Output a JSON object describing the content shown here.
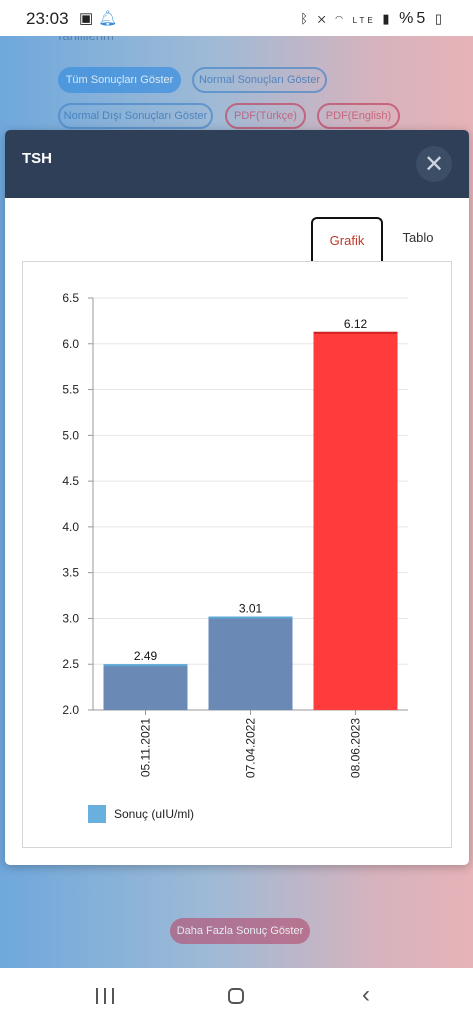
{
  "status_bar": {
    "time": "23:03",
    "left_icons": [
      "image-icon",
      "bell-icon"
    ],
    "right_icons": [
      "bluetooth-icon",
      "mute-icon",
      "wifi-icon",
      "volte-icon",
      "signal-icon"
    ],
    "battery_text": "%5"
  },
  "background": {
    "partial_text": "Tahlillerim",
    "buttons": {
      "all_results": "Tüm Sonuçları Göster",
      "normal_results": "Normal Sonuçları Göster",
      "abnormal_results": "Normal Dışı Sonuçları Göster",
      "pdf_tr": "PDF(Türkçe)",
      "pdf_en": "PDF(English)"
    },
    "more_results": "Daha Fazla Sonuç Göster"
  },
  "modal": {
    "title": "TSH",
    "close_symbol": "✕",
    "tabs": {
      "grafik": "Grafik",
      "tablo": "Tablo"
    },
    "active_tab": "Grafik"
  },
  "chart_data": {
    "type": "bar",
    "categories": [
      "05.11.2021",
      "07.04.2022",
      "08.06.2023"
    ],
    "series": [
      {
        "name": "Sonuç (uIU/ml)",
        "values": [
          2.49,
          3.01,
          6.12
        ]
      }
    ],
    "data_labels": [
      "2.49",
      "3.01",
      "6.12"
    ],
    "bar_colors": [
      "#6a8ab5",
      "#6a8ab5",
      "#ff3b3b"
    ],
    "legend_color": "#6ab0de",
    "ylim": [
      2.0,
      6.5
    ],
    "yticks": [
      "2.0",
      "2.5",
      "3.0",
      "3.5",
      "4.0",
      "4.5",
      "5.0",
      "5.5",
      "6.0",
      "6.5"
    ],
    "grid": true,
    "legend": "bottom-left"
  }
}
